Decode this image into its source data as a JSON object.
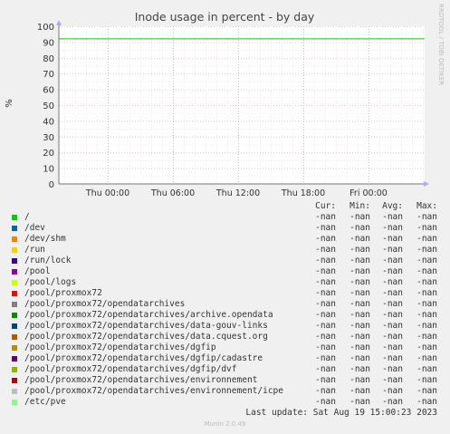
{
  "chart_data": {
    "type": "line",
    "title": "Inode usage in percent - by day",
    "ylabel": "%",
    "ylim": [
      0,
      100
    ],
    "yticks": [
      "0",
      "10",
      "20",
      "30",
      "40",
      "50",
      "60",
      "70",
      "80",
      "90",
      "100"
    ],
    "xticks": [
      "Thu 00:00",
      "Thu 06:00",
      "Thu 12:00",
      "Thu 18:00",
      "Fri 00:00"
    ],
    "grid": true,
    "series": [
      {
        "name": "/",
        "color": "#00cc00",
        "values": [
          92,
          92
        ]
      }
    ]
  },
  "side_label": "RRDTOOL / TOBI OETIKER",
  "legend": {
    "headers": [
      "Cur:",
      "Min:",
      "Avg:",
      "Max:"
    ],
    "rows": [
      {
        "name": "/",
        "color": "#00cc00",
        "cur": "-nan",
        "min": "-nan",
        "avg": "-nan",
        "max": "-nan"
      },
      {
        "name": "/dev",
        "color": "#0066b3",
        "cur": "-nan",
        "min": "-nan",
        "avg": "-nan",
        "max": "-nan"
      },
      {
        "name": "/dev/shm",
        "color": "#ff8000",
        "cur": "-nan",
        "min": "-nan",
        "avg": "-nan",
        "max": "-nan"
      },
      {
        "name": "/run",
        "color": "#ffcc00",
        "cur": "-nan",
        "min": "-nan",
        "avg": "-nan",
        "max": "-nan"
      },
      {
        "name": "/run/lock",
        "color": "#330099",
        "cur": "-nan",
        "min": "-nan",
        "avg": "-nan",
        "max": "-nan"
      },
      {
        "name": "/pool",
        "color": "#990099",
        "cur": "-nan",
        "min": "-nan",
        "avg": "-nan",
        "max": "-nan"
      },
      {
        "name": "/pool/logs",
        "color": "#ccff00",
        "cur": "-nan",
        "min": "-nan",
        "avg": "-nan",
        "max": "-nan"
      },
      {
        "name": "/pool/proxmox72",
        "color": "#ff0000",
        "cur": "-nan",
        "min": "-nan",
        "avg": "-nan",
        "max": "-nan"
      },
      {
        "name": "/pool/proxmox72/opendatarchives",
        "color": "#808080",
        "cur": "-nan",
        "min": "-nan",
        "avg": "-nan",
        "max": "-nan"
      },
      {
        "name": "/pool/proxmox72/opendatarchives/archive.opendata",
        "color": "#008f00",
        "cur": "-nan",
        "min": "-nan",
        "avg": "-nan",
        "max": "-nan"
      },
      {
        "name": "/pool/proxmox72/opendatarchives/data-gouv-links",
        "color": "#00487d",
        "cur": "-nan",
        "min": "-nan",
        "avg": "-nan",
        "max": "-nan"
      },
      {
        "name": "/pool/proxmox72/opendatarchives/data.cquest.org",
        "color": "#b35a00",
        "cur": "-nan",
        "min": "-nan",
        "avg": "-nan",
        "max": "-nan"
      },
      {
        "name": "/pool/proxmox72/opendatarchives/dgfip",
        "color": "#b38f00",
        "cur": "-nan",
        "min": "-nan",
        "avg": "-nan",
        "max": "-nan"
      },
      {
        "name": "/pool/proxmox72/opendatarchives/dgfip/cadastre",
        "color": "#6b006b",
        "cur": "-nan",
        "min": "-nan",
        "avg": "-nan",
        "max": "-nan"
      },
      {
        "name": "/pool/proxmox72/opendatarchives/dgfip/dvf",
        "color": "#8fb300",
        "cur": "-nan",
        "min": "-nan",
        "avg": "-nan",
        "max": "-nan"
      },
      {
        "name": "/pool/proxmox72/opendatarchives/environnement",
        "color": "#b30000",
        "cur": "-nan",
        "min": "-nan",
        "avg": "-nan",
        "max": "-nan"
      },
      {
        "name": "/pool/proxmox72/opendatarchives/environnement/icpe",
        "color": "#bebebe",
        "cur": "-nan",
        "min": "-nan",
        "avg": "-nan",
        "max": "-nan"
      },
      {
        "name": "/etc/pve",
        "color": "#80ff80",
        "cur": "-nan",
        "min": "-nan",
        "avg": "-nan",
        "max": "-nan"
      }
    ]
  },
  "last_update": "Last update: Sat Aug 19 15:00:23 2023",
  "footer": "Munin 2.0.49"
}
